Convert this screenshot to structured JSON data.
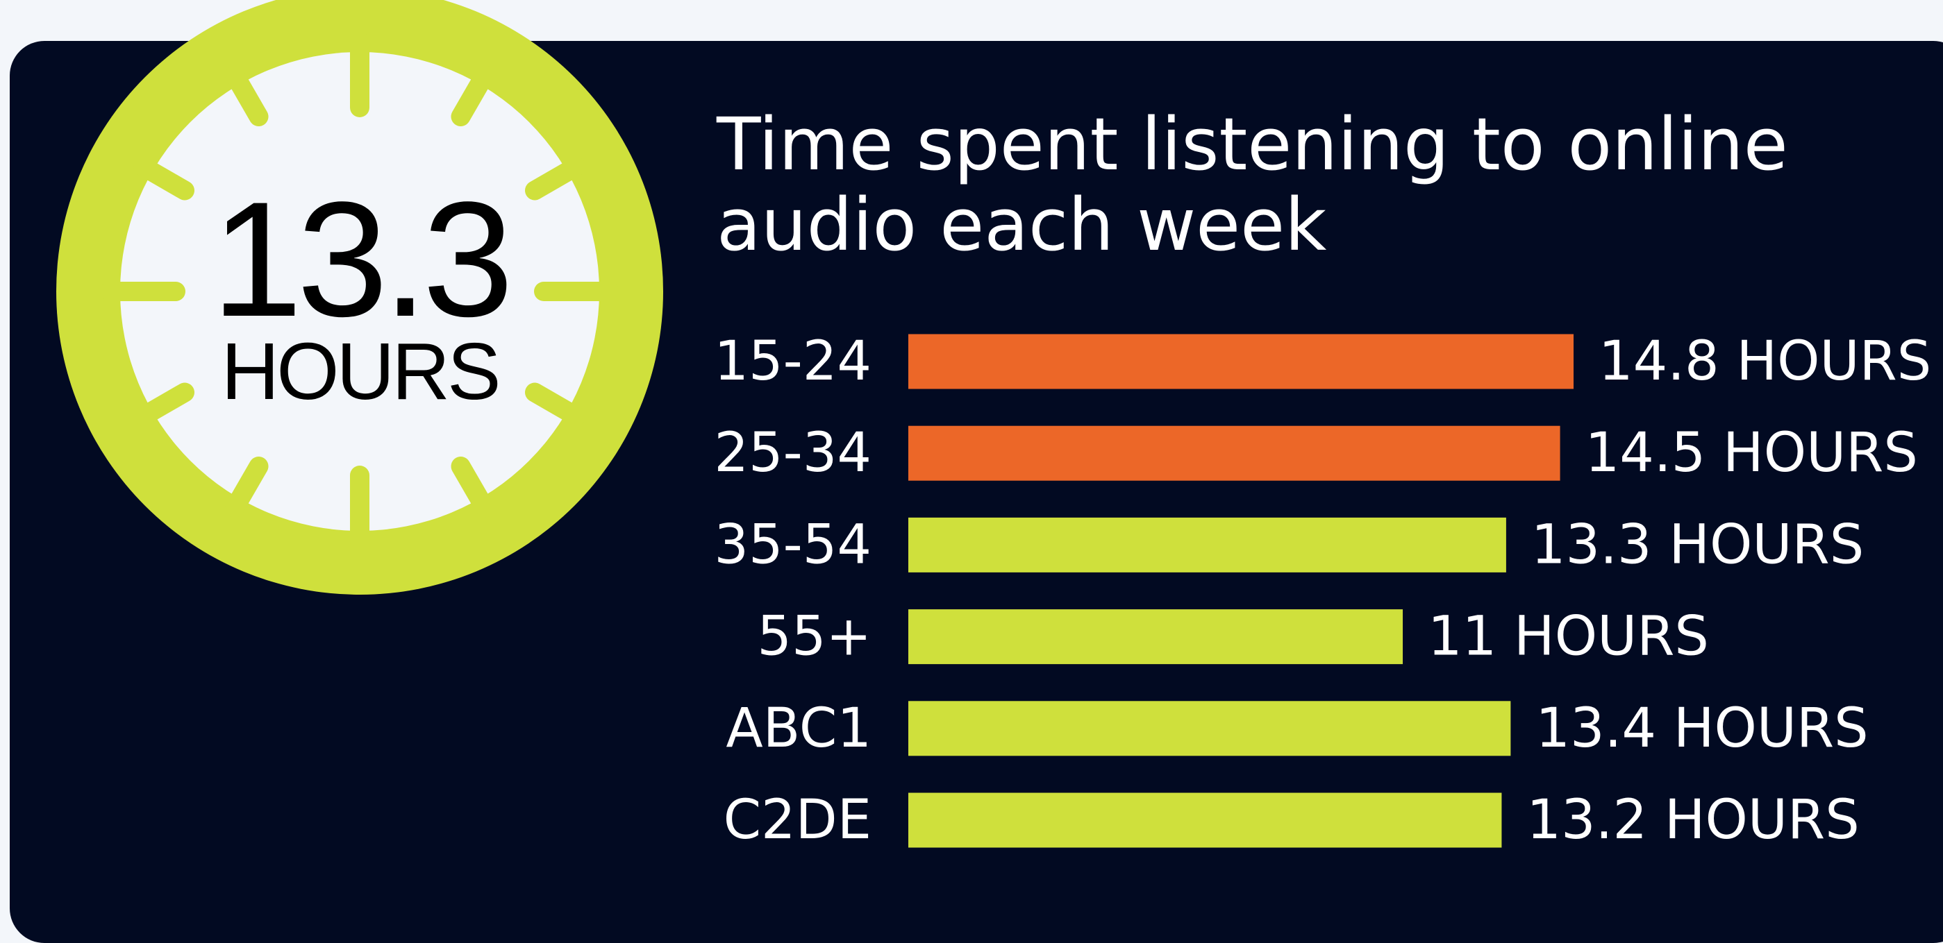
{
  "chart_data": {
    "type": "bar",
    "orientation": "horizontal",
    "title": "Time spent listening to online audio each week",
    "highlight": {
      "value": "13.3",
      "unit": "HOURS"
    },
    "categories": [
      "15-24",
      "25-34",
      "35-54",
      "55+",
      "ABC1",
      "C2DE"
    ],
    "values": [
      14.8,
      14.5,
      13.3,
      11,
      13.4,
      13.2
    ],
    "value_labels": [
      "14.8 HOURS",
      "14.5 HOURS",
      "13.3 HOURS",
      "11 HOURS",
      "13.4 HOURS",
      "13.2 HOURS"
    ],
    "colors": [
      "#ec6728",
      "#ec6728",
      "#cfe03c",
      "#cfe03c",
      "#cfe03c",
      "#cfe03c"
    ]
  }
}
